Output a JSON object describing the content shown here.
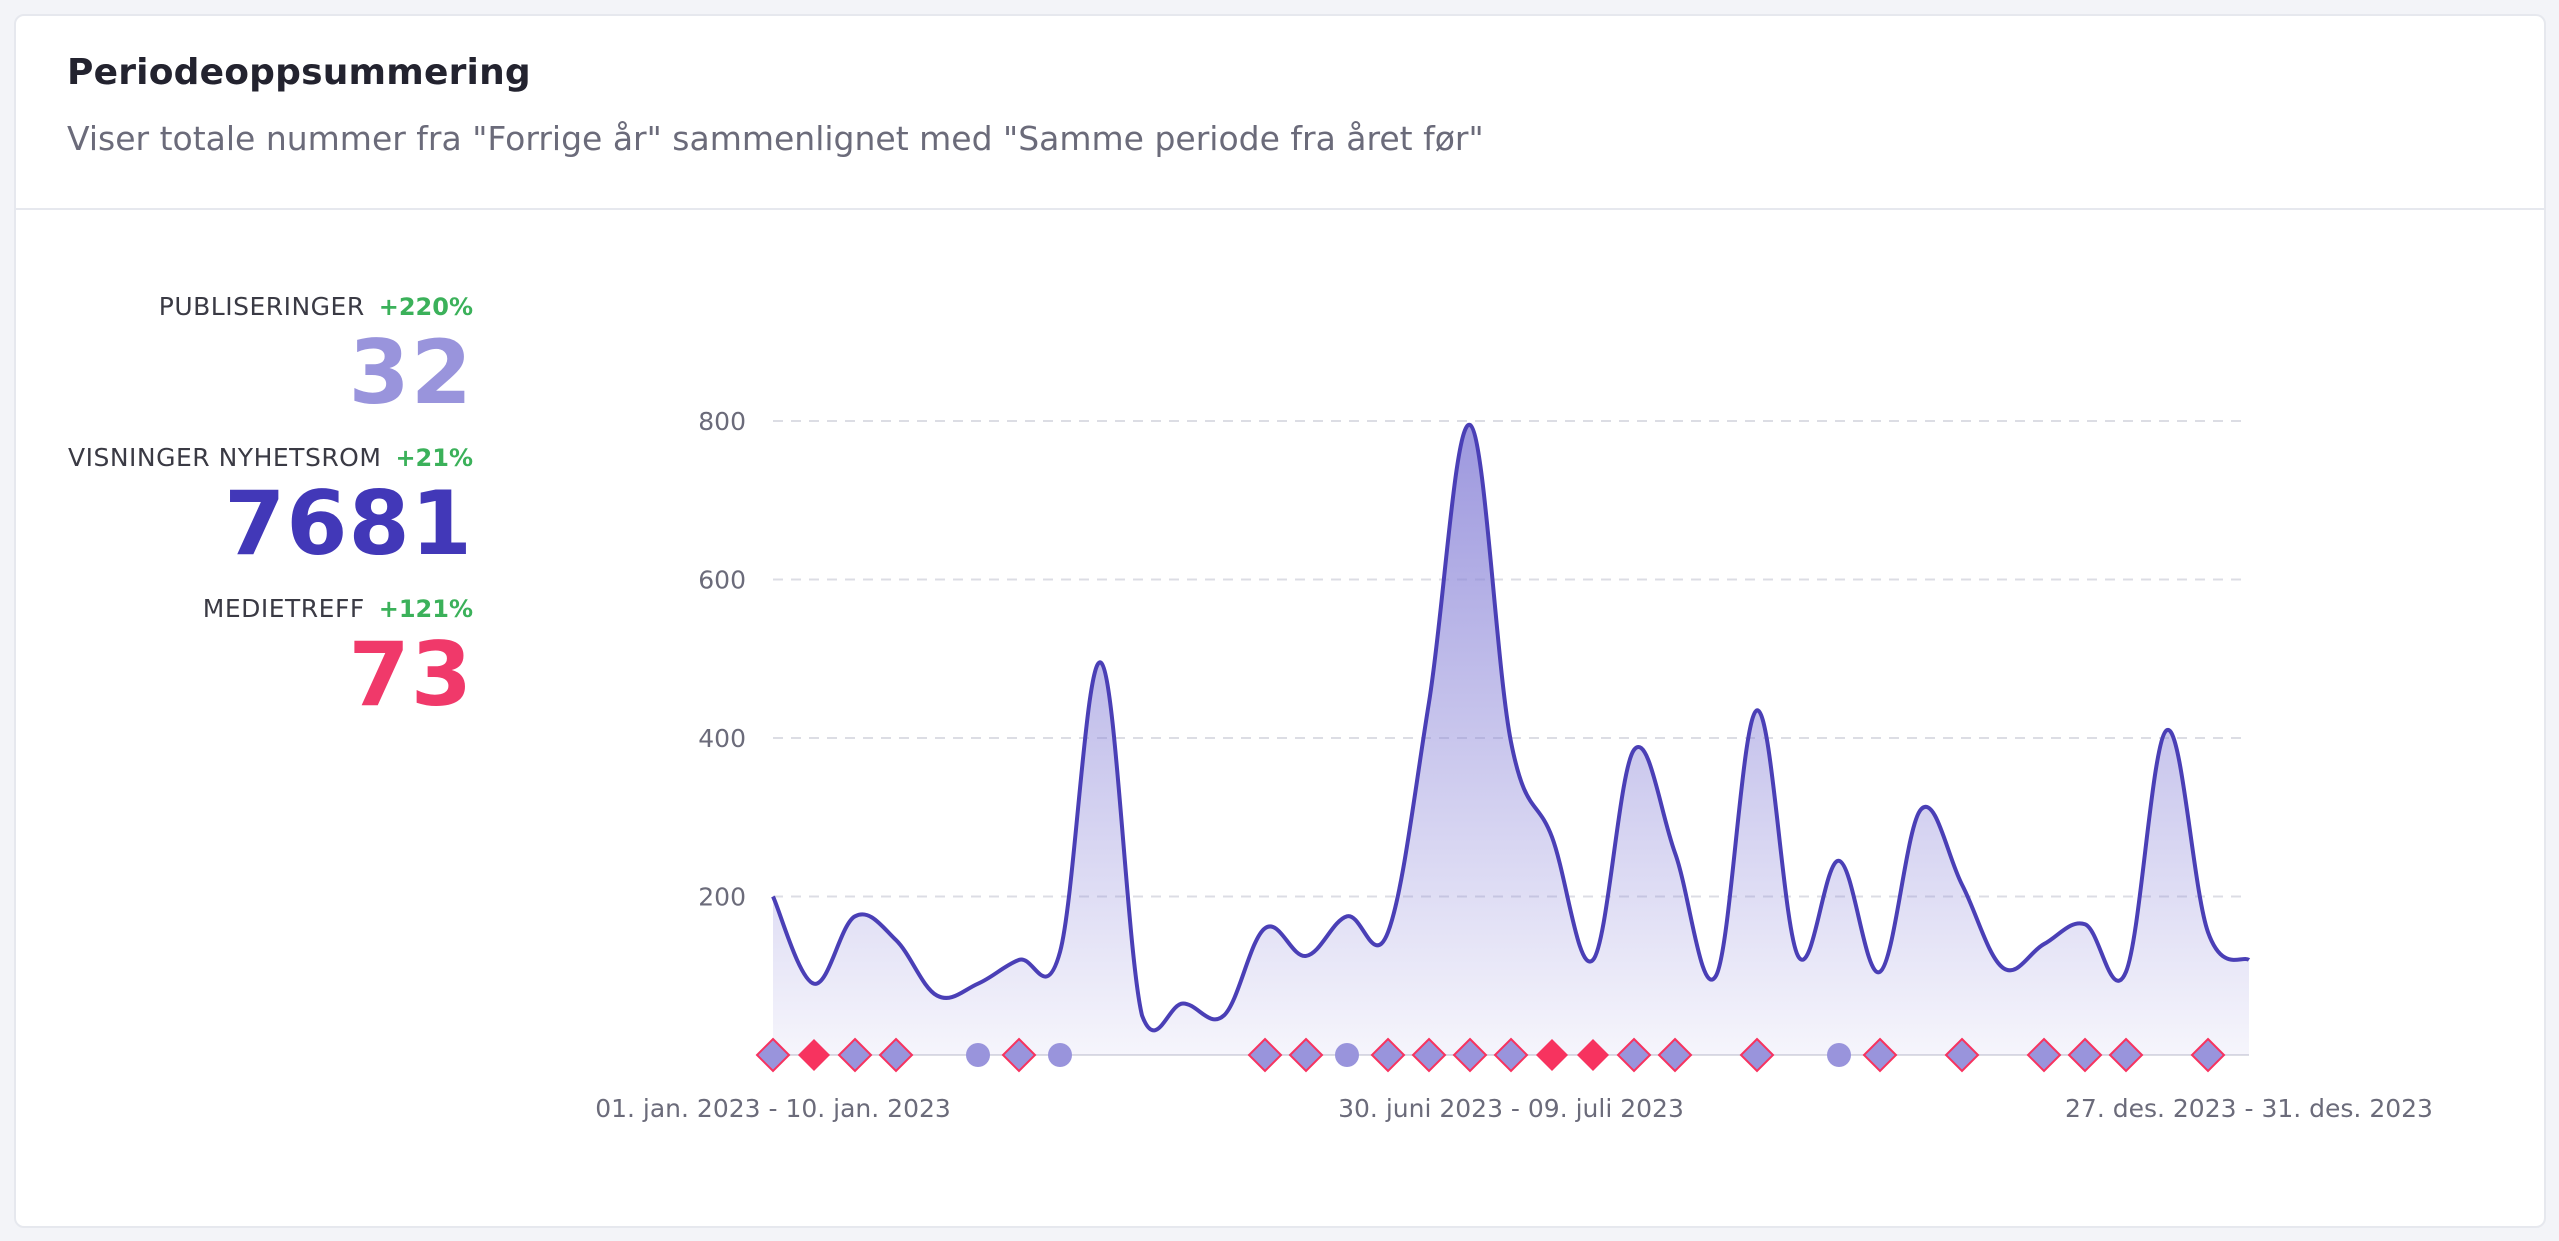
{
  "card": {
    "title": "Periodeoppsummering",
    "subtitle": "Viser totale nummer fra \"Forrige år\" sammenlignet med \"Samme periode fra året før\""
  },
  "stats": [
    {
      "label": "PUBLISERINGER",
      "change": "+220%",
      "value": "32",
      "color": "#9994dc"
    },
    {
      "label": "VISNINGER NYHETSROM",
      "change": "+21%",
      "value": "7681",
      "color": "#4238b8"
    },
    {
      "label": "MEDIETREFF",
      "change": "+121%",
      "value": "73",
      "color": "#f0396a"
    }
  ],
  "colors": {
    "line": "#4a3fb6",
    "area": "#8b85d8",
    "marker_publication": "#9994dc",
    "marker_media": "#f7335f",
    "positive": "#3bb15a"
  },
  "chart_data": {
    "type": "area",
    "x": [
      1,
      2,
      3,
      4,
      5,
      6,
      7,
      8,
      9,
      10,
      11,
      12,
      13,
      14,
      15,
      16,
      17,
      18,
      19,
      20,
      21,
      22,
      23,
      24,
      25,
      26,
      27,
      28,
      29,
      30,
      31,
      32,
      33,
      34,
      35,
      36,
      37
    ],
    "y": [
      200,
      90,
      175,
      145,
      75,
      90,
      120,
      130,
      495,
      50,
      65,
      50,
      160,
      125,
      175,
      155,
      445,
      795,
      395,
      275,
      120,
      385,
      255,
      100,
      435,
      125,
      245,
      105,
      310,
      215,
      110,
      140,
      165,
      105,
      410,
      155,
      120
    ],
    "x_tick_labels": [
      {
        "x": 1,
        "label": "01. jan. 2023 - 10. jan. 2023"
      },
      {
        "x": 19,
        "label": "30. juni 2023 - 09. juli 2023"
      },
      {
        "x": 37,
        "label": "27. des. 2023 - 31. des. 2023"
      }
    ],
    "y_ticks": [
      200,
      400,
      600,
      800
    ],
    "ylim": [
      0,
      800
    ],
    "grid": true,
    "markers": [
      {
        "x": 1,
        "shape": "diamond"
      },
      {
        "x": 2,
        "shape": "diamond-media"
      },
      {
        "x": 3,
        "shape": "diamond"
      },
      {
        "x": 4,
        "shape": "diamond"
      },
      {
        "x": 6,
        "shape": "circle"
      },
      {
        "x": 7,
        "shape": "diamond"
      },
      {
        "x": 8,
        "shape": "circle"
      },
      {
        "x": 13,
        "shape": "diamond"
      },
      {
        "x": 14,
        "shape": "diamond"
      },
      {
        "x": 15,
        "shape": "circle"
      },
      {
        "x": 16,
        "shape": "diamond"
      },
      {
        "x": 17,
        "shape": "diamond"
      },
      {
        "x": 18,
        "shape": "diamond"
      },
      {
        "x": 19,
        "shape": "diamond"
      },
      {
        "x": 20,
        "shape": "diamond-media"
      },
      {
        "x": 21,
        "shape": "diamond-media"
      },
      {
        "x": 22,
        "shape": "diamond"
      },
      {
        "x": 23,
        "shape": "diamond"
      },
      {
        "x": 25,
        "shape": "diamond"
      },
      {
        "x": 27,
        "shape": "circle"
      },
      {
        "x": 28,
        "shape": "diamond"
      },
      {
        "x": 30,
        "shape": "diamond"
      },
      {
        "x": 32,
        "shape": "diamond"
      },
      {
        "x": 33,
        "shape": "diamond"
      },
      {
        "x": 34,
        "shape": "diamond"
      },
      {
        "x": 36,
        "shape": "diamond"
      }
    ]
  }
}
